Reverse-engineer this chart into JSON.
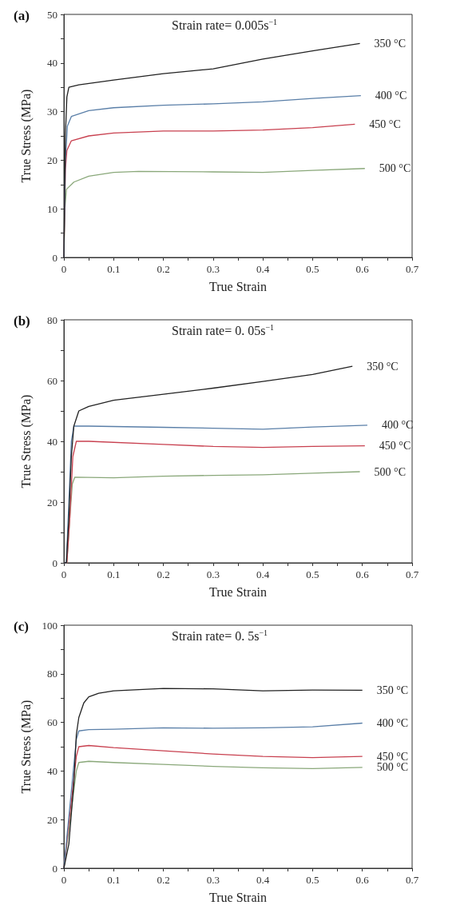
{
  "chart_data": [
    {
      "type": "line",
      "title": "(a)",
      "annotations": [
        "Strain rate= 0.005s$^{−1}$"
      ],
      "xlabel": "True Strain",
      "ylabel": "True Stress (MPa)",
      "marker": "none",
      "xlim": [
        0,
        0.7
      ],
      "xticks": [
        0,
        {
          "value": 0.05,
          "label": null
        },
        0.1,
        {
          "value": 0.15,
          "label": null
        },
        0.2,
        {
          "value": 0.25,
          "label": null
        },
        0.3,
        {
          "value": 0.35,
          "label": null
        },
        0.4,
        {
          "value": 0.45,
          "label": null
        },
        0.5,
        {
          "value": 0.55,
          "label": null
        },
        0.6,
        {
          "value": 0.65,
          "label": null
        },
        0.7
      ],
      "ylim": [
        0,
        50
      ],
      "yticks": [
        0,
        {
          "value": 5,
          "label": null
        },
        10,
        {
          "value": 15,
          "label": null
        },
        20,
        {
          "value": 25,
          "label": null
        },
        30,
        {
          "value": 35,
          "label": null
        },
        40,
        {
          "value": 45,
          "label": null
        },
        50
      ],
      "series": [
        {
          "name": "350 °C",
          "color": "#222222",
          "x": [
            0,
            0.003,
            0.006,
            0.01,
            0.03,
            0.1,
            0.2,
            0.3,
            0.4,
            0.5,
            0.595
          ],
          "values": [
            0,
            25,
            33,
            35,
            35.5,
            36.5,
            37.8,
            38.8,
            40.8,
            42.5,
            44
          ]
        },
        {
          "name": "400 °C",
          "color": "#5a7fa8",
          "x": [
            0,
            0.003,
            0.007,
            0.015,
            0.05,
            0.1,
            0.2,
            0.3,
            0.4,
            0.5,
            0.597
          ],
          "values": [
            0,
            20,
            27,
            29,
            30.2,
            30.8,
            31.3,
            31.6,
            32,
            32.7,
            33.3
          ]
        },
        {
          "name": "450 °C",
          "color": "#c8404f",
          "x": [
            0,
            0.003,
            0.006,
            0.015,
            0.05,
            0.1,
            0.2,
            0.3,
            0.4,
            0.5,
            0.585
          ],
          "values": [
            0,
            18,
            22,
            24,
            25,
            25.6,
            26,
            26,
            26.2,
            26.7,
            27.4
          ]
        },
        {
          "name": "500 °C",
          "color": "#8aa87a",
          "x": [
            0,
            0.002,
            0.005,
            0.02,
            0.05,
            0.1,
            0.15,
            0.3,
            0.4,
            0.5,
            0.605
          ],
          "values": [
            0,
            10,
            14,
            15.5,
            16.7,
            17.5,
            17.7,
            17.6,
            17.5,
            17.9,
            18.3
          ]
        }
      ]
    },
    {
      "type": "line",
      "title": "(b)",
      "annotations": [
        "Strain rate= 0. 05s$^{−1}$"
      ],
      "xlabel": "True Strain",
      "ylabel": "True Stress (MPa)",
      "marker": "none",
      "xlim": [
        0,
        0.7
      ],
      "xticks": [
        0,
        {
          "value": 0.05,
          "label": null
        },
        0.1,
        {
          "value": 0.15,
          "label": null
        },
        0.2,
        {
          "value": 0.25,
          "label": null
        },
        0.3,
        {
          "value": 0.35,
          "label": null
        },
        0.4,
        {
          "value": 0.45,
          "label": null
        },
        0.5,
        {
          "value": 0.55,
          "label": null
        },
        0.6,
        {
          "value": 0.65,
          "label": null
        },
        0.7
      ],
      "ylim": [
        0,
        80
      ],
      "yticks": [
        0,
        {
          "value": 10,
          "label": null
        },
        20,
        {
          "value": 30,
          "label": null
        },
        40,
        {
          "value": 50,
          "label": null
        },
        60,
        {
          "value": 70,
          "label": null
        },
        80
      ],
      "series": [
        {
          "name": "350 °C",
          "color": "#222222",
          "x": [
            0,
            0.005,
            0.01,
            0.015,
            0.02,
            0.03,
            0.05,
            0.1,
            0.2,
            0.3,
            0.4,
            0.5,
            0.58
          ],
          "values": [
            0,
            0,
            15,
            35,
            45,
            50,
            51.5,
            53.5,
            55.5,
            57.5,
            59.7,
            62,
            64.7
          ]
        },
        {
          "name": "400 °C",
          "color": "#5a7fa8",
          "x": [
            0,
            0.005,
            0.01,
            0.015,
            0.02,
            0.05,
            0.2,
            0.3,
            0.4,
            0.5,
            0.61
          ],
          "values": [
            0,
            0,
            20,
            40,
            45,
            45,
            44.6,
            44.3,
            44,
            44.7,
            45.3
          ]
        },
        {
          "name": "450 °C",
          "color": "#c8404f",
          "x": [
            0,
            0.006,
            0.012,
            0.018,
            0.025,
            0.05,
            0.2,
            0.3,
            0.4,
            0.5,
            0.605
          ],
          "values": [
            0,
            0,
            15,
            35,
            40,
            40,
            39,
            38.3,
            38,
            38.3,
            38.5
          ]
        },
        {
          "name": "500 °C",
          "color": "#8aa87a",
          "x": [
            0,
            0.006,
            0.012,
            0.017,
            0.022,
            0.1,
            0.2,
            0.3,
            0.4,
            0.5,
            0.595
          ],
          "values": [
            0,
            0,
            15,
            26,
            28.2,
            28,
            28.5,
            28.8,
            29,
            29.5,
            30
          ]
        }
      ]
    },
    {
      "type": "line",
      "title": "(c)",
      "annotations": [
        "Strain rate= 0. 5s$^{−1}$"
      ],
      "xlabel": "True Strain",
      "ylabel": "True Stress (MPa)",
      "marker": "none",
      "xlim": [
        0,
        0.7
      ],
      "xticks": [
        0,
        {
          "value": 0.05,
          "label": null
        },
        0.1,
        {
          "value": 0.15,
          "label": null
        },
        0.2,
        {
          "value": 0.25,
          "label": null
        },
        0.3,
        {
          "value": 0.35,
          "label": null
        },
        0.4,
        {
          "value": 0.45,
          "label": null
        },
        0.5,
        {
          "value": 0.55,
          "label": null
        },
        0.6,
        {
          "value": 0.65,
          "label": null
        },
        0.7
      ],
      "ylim": [
        0,
        100
      ],
      "yticks": [
        0,
        {
          "value": 10,
          "label": null
        },
        20,
        {
          "value": 30,
          "label": null
        },
        40,
        {
          "value": 50,
          "label": null
        },
        60,
        {
          "value": 70,
          "label": null
        },
        80,
        {
          "value": 90,
          "label": null
        },
        100
      ],
      "series": [
        {
          "name": "350 °C",
          "color": "#222222",
          "x": [
            0,
            0.01,
            0.02,
            0.025,
            0.03,
            0.04,
            0.05,
            0.07,
            0.1,
            0.2,
            0.3,
            0.4,
            0.5,
            0.6
          ],
          "values": [
            0,
            10,
            35,
            55,
            62,
            68,
            70.5,
            72,
            73,
            74,
            73.8,
            73,
            73.3,
            73.2
          ]
        },
        {
          "name": "400 °C",
          "color": "#5a7fa8",
          "x": [
            0,
            0.025,
            0.03,
            0.05,
            0.1,
            0.2,
            0.3,
            0.4,
            0.5,
            0.6
          ],
          "values": [
            0,
            53,
            56.5,
            57,
            57.2,
            57.8,
            57.6,
            57.8,
            58.2,
            59.7
          ]
        },
        {
          "name": "450 °C",
          "color": "#c8404f",
          "x": [
            0,
            0.025,
            0.03,
            0.05,
            0.1,
            0.2,
            0.3,
            0.4,
            0.5,
            0.6
          ],
          "values": [
            0,
            46,
            50,
            50.5,
            49.6,
            48.3,
            47,
            46,
            45.5,
            46
          ]
        },
        {
          "name": "500 °C",
          "color": "#8aa87a",
          "x": [
            0,
            0.025,
            0.03,
            0.05,
            0.1,
            0.2,
            0.3,
            0.4,
            0.5,
            0.6
          ],
          "values": [
            0,
            40,
            43.5,
            44,
            43.5,
            42.7,
            41.9,
            41.3,
            41,
            41.5
          ]
        }
      ]
    }
  ]
}
